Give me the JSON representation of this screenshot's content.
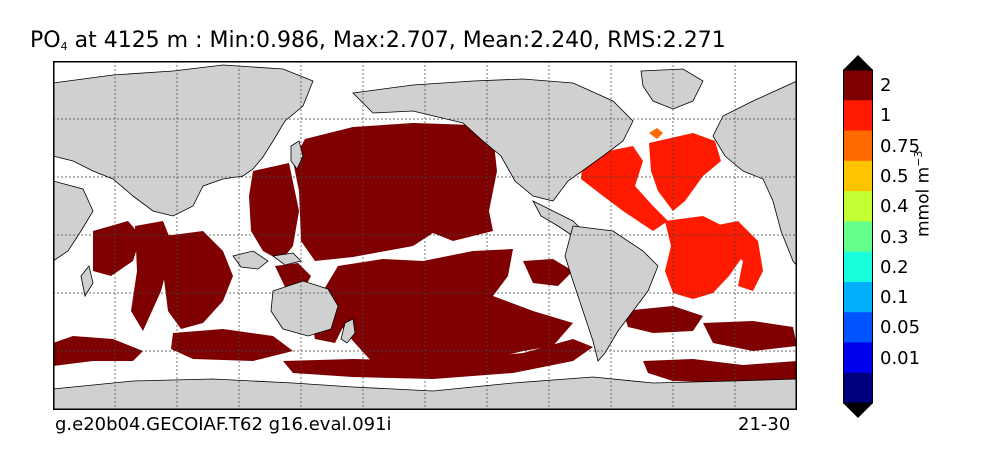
{
  "title": {
    "species": "PO",
    "subscript": "4",
    "text": "at 4125 m : Min:0.986, Max:2.707, Mean:2.240, RMS:2.271"
  },
  "footer": {
    "run_id": "g.e20b04.GECOIAF.T62 g16.eval.091i",
    "years": "21-30"
  },
  "colorbar": {
    "units_base": "mmol m",
    "units_exp": "−3",
    "labels": [
      "2",
      "1",
      "0.75",
      "0.5",
      "0.4",
      "0.3",
      "0.2",
      "0.1",
      "0.05",
      "0.01"
    ],
    "colors": [
      "#7f0000",
      "#ff1a00",
      "#ff6a00",
      "#ffc400",
      "#c4ff33",
      "#66ff8c",
      "#19ffdd",
      "#00b0ff",
      "#0054ff",
      "#0000f0",
      "#00007f"
    ],
    "top_extend_color": "#000000",
    "bottom_extend_color": "#000000"
  },
  "colors": {
    "land": "#d0d0d0",
    "ocean_missing": "#ffffff",
    "high": "#7f0000",
    "red": "#ff1a00",
    "orange": "#ff6a00"
  }
}
